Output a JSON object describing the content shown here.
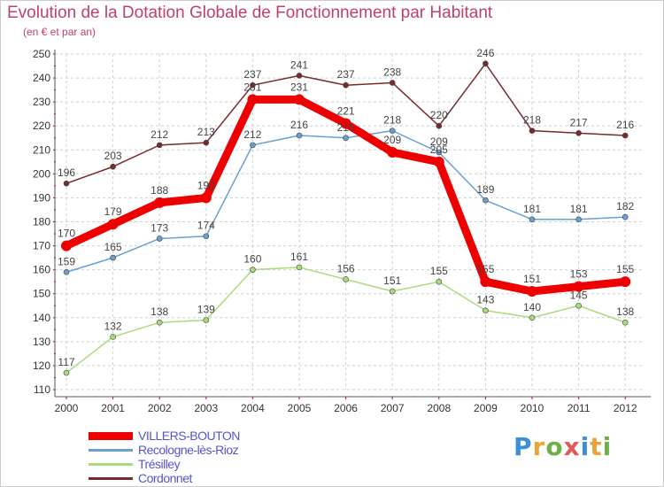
{
  "title": "Evolution de la Dotation Globale de Fonctionnement par Habitant",
  "subtitle": "(en € et par an)",
  "logo": {
    "text": "Proxiti",
    "colors": [
      "#3a8fd6",
      "#e8a33a",
      "#6bb04a",
      "#e05a5a",
      "#3a8fd6",
      "#e8a33a",
      "#6bb04a"
    ]
  },
  "chart_data": {
    "type": "line",
    "x": [
      "2000",
      "2001",
      "2002",
      "2003",
      "2004",
      "2005",
      "2006",
      "2007",
      "2008",
      "2009",
      "2010",
      "2011",
      "2012"
    ],
    "ylim": [
      110,
      250
    ],
    "yticks": [
      110,
      120,
      130,
      140,
      150,
      160,
      170,
      180,
      190,
      200,
      210,
      220,
      230,
      240,
      250
    ],
    "grid": true,
    "legend_position": "bottom-left",
    "series": [
      {
        "name": "Cordonnet",
        "color": "#7a2a2a",
        "values": [
          196,
          203,
          212,
          213,
          237,
          241,
          237,
          238,
          220,
          246,
          218,
          217,
          216
        ]
      },
      {
        "name": "Recologne-lès-Rioz",
        "color": "#6a9fd0",
        "values": [
          159,
          165,
          173,
          174,
          212,
          216,
          215,
          218,
          209,
          189,
          181,
          181,
          182
        ]
      },
      {
        "name": "Trésilley",
        "color": "#a8dc7a",
        "values": [
          117,
          132,
          138,
          139,
          160,
          161,
          156,
          151,
          155,
          143,
          140,
          145,
          138
        ]
      },
      {
        "name": "VILLERS-BOUTON",
        "color": "#ee0000",
        "values": [
          170,
          179,
          188,
          190,
          231,
          231,
          221,
          209,
          205,
          155,
          151,
          153,
          155
        ]
      }
    ],
    "legend_order": [
      "VILLERS-BOUTON",
      "Recologne-lès-Rioz",
      "Trésilley",
      "Cordonnet"
    ]
  }
}
